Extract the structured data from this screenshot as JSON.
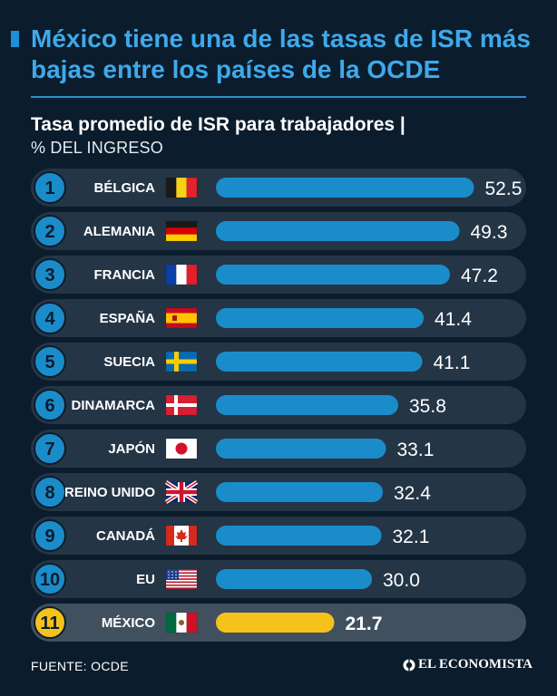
{
  "header": {
    "title": "México tiene una de las tasas de ISR más bajas entre los países de la OCDE",
    "subtitle": "Tasa promedio de ISR para trabajadores |",
    "unit": "% DEL INGRESO"
  },
  "footer": {
    "source": "FUENTE: OCDE",
    "brand": "EL ECONOMISTA"
  },
  "colors": {
    "background": "#0b1c2c",
    "bar": "#1b8cca",
    "highlight": "#f5c21b",
    "title": "#3fa9ea"
  },
  "chart_data": {
    "type": "bar",
    "orientation": "horizontal",
    "title": "Tasa promedio de ISR para trabajadores",
    "xlabel": "% DEL INGRESO",
    "xlim": [
      0,
      60
    ],
    "grid": false,
    "highlight_category": "MÉXICO",
    "ranks": [
      "1",
      "2",
      "3",
      "4",
      "5",
      "6",
      "7",
      "8",
      "9",
      "10",
      "11"
    ],
    "categories": [
      "BÉLGICA",
      "ALEMANIA",
      "FRANCIA",
      "ESPAÑA",
      "SUECIA",
      "DINAMARCA",
      "JAPÓN",
      "REINO UNIDO",
      "CANADÁ",
      "EU",
      "MÉXICO"
    ],
    "flags": [
      "belgium-flag",
      "germany-flag",
      "france-flag",
      "spain-flag",
      "sweden-flag",
      "denmark-flag",
      "japan-flag",
      "uk-flag",
      "canada-flag",
      "usa-flag",
      "mexico-flag"
    ],
    "values": [
      52.5,
      49.3,
      47.2,
      41.4,
      41.1,
      35.8,
      33.1,
      32.4,
      32.1,
      30.0,
      21.7
    ]
  }
}
